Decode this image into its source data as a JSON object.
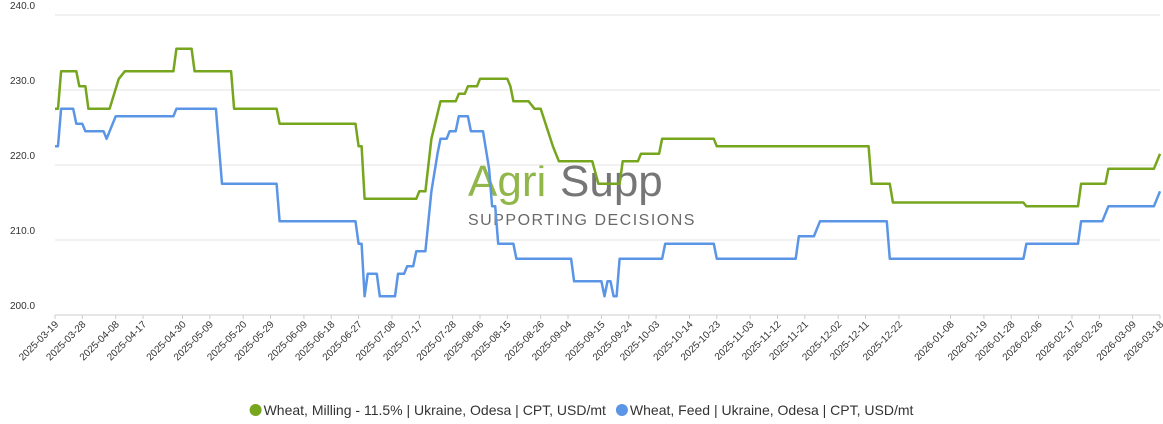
{
  "chart_data": {
    "type": "line",
    "watermark": {
      "brand_a": "Agri",
      "brand_b": "Supp",
      "tagline": "SUPPORTING DECISIONS"
    },
    "ylim": [
      200,
      240
    ],
    "yticks": [
      {
        "value": 200,
        "label": "200.0"
      },
      {
        "value": 210,
        "label": "210.0"
      },
      {
        "value": 220,
        "label": "220.0"
      },
      {
        "value": 230,
        "label": "230.0"
      },
      {
        "value": 240,
        "label": "240.0"
      }
    ],
    "xlim": [
      "2025-03-19",
      "2026-03-18"
    ],
    "xticks": [
      "2025-03-19",
      "2025-03-28",
      "2025-04-08",
      "2025-04-17",
      "2025-04-30",
      "2025-05-09",
      "2025-05-20",
      "2025-05-29",
      "2025-06-09",
      "2025-06-18",
      "2025-06-27",
      "2025-07-08",
      "2025-07-17",
      "2025-07-28",
      "2025-08-06",
      "2025-08-15",
      "2025-08-26",
      "2025-09-04",
      "2025-09-15",
      "2025-09-24",
      "2025-10-03",
      "2025-10-14",
      "2025-10-23",
      "2025-11-03",
      "2025-11-12",
      "2025-11-21",
      "2025-12-02",
      "2025-12-11",
      "2025-12-22",
      "2026-01-08",
      "2026-01-19",
      "2026-01-28",
      "2026-02-06",
      "2026-02-17",
      "2026-02-26",
      "2026-03-09",
      "2026-03-18"
    ],
    "grid": true,
    "legend": "bottom",
    "series": [
      {
        "name": "Wheat, Milling - 11.5% | Ukraine, Odesa | CPT, USD/mt",
        "color": "#76a51e",
        "x": [
          "2025-03-19",
          "2025-03-20",
          "2025-03-21",
          "2025-03-26",
          "2025-03-27",
          "2025-03-29",
          "2025-03-30",
          "2025-04-06",
          "2025-04-09",
          "2025-04-11",
          "2025-04-27",
          "2025-04-28",
          "2025-05-03",
          "2025-05-04",
          "2025-05-16",
          "2025-05-17",
          "2025-05-31",
          "2025-06-01",
          "2025-06-26",
          "2025-06-27",
          "2025-06-28",
          "2025-06-29",
          "2025-07-16",
          "2025-07-17",
          "2025-07-19",
          "2025-07-21",
          "2025-07-24",
          "2025-07-29",
          "2025-07-30",
          "2025-08-01",
          "2025-08-02",
          "2025-08-05",
          "2025-08-06",
          "2025-08-15",
          "2025-08-16",
          "2025-08-17",
          "2025-08-22",
          "2025-08-24",
          "2025-08-26",
          "2025-08-30",
          "2025-09-01",
          "2025-09-12",
          "2025-09-14",
          "2025-09-21",
          "2025-09-22",
          "2025-09-27",
          "2025-09-28",
          "2025-10-04",
          "2025-10-05",
          "2025-10-22",
          "2025-10-23",
          "2025-12-12",
          "2025-12-13",
          "2025-12-19",
          "2025-12-20",
          "2026-02-01",
          "2026-02-02",
          "2026-02-19",
          "2026-02-20",
          "2026-02-28",
          "2026-03-01",
          "2026-03-16",
          "2026-03-18"
        ],
        "values": [
          227.5,
          227.5,
          232.5,
          232.5,
          230.5,
          230.5,
          227.5,
          227.5,
          231.5,
          232.5,
          232.5,
          235.5,
          235.5,
          232.5,
          232.5,
          227.5,
          227.5,
          225.5,
          225.5,
          222.5,
          222.5,
          215.5,
          215.5,
          216.5,
          216.5,
          223.5,
          228.5,
          228.5,
          229.5,
          229.5,
          230.5,
          230.5,
          231.5,
          231.5,
          230.5,
          228.5,
          228.5,
          227.5,
          227.5,
          222.5,
          220.5,
          220.5,
          217.5,
          217.5,
          220.5,
          220.5,
          221.5,
          221.5,
          223.5,
          223.5,
          222.5,
          222.5,
          217.5,
          217.5,
          215,
          215,
          214.5,
          214.5,
          217.5,
          217.5,
          219.5,
          219.5,
          221.5
        ]
      },
      {
        "name": "Wheat, Feed | Ukraine, Odesa | CPT, USD/mt",
        "color": "#5b95e6",
        "x": [
          "2025-03-19",
          "2025-03-20",
          "2025-03-21",
          "2025-03-25",
          "2025-03-26",
          "2025-03-28",
          "2025-03-29",
          "2025-04-04",
          "2025-04-05",
          "2025-04-06",
          "2025-04-08",
          "2025-04-27",
          "2025-04-28",
          "2025-05-11",
          "2025-05-13",
          "2025-05-31",
          "2025-06-01",
          "2025-06-26",
          "2025-06-27",
          "2025-06-28",
          "2025-06-29",
          "2025-06-30",
          "2025-07-03",
          "2025-07-04",
          "2025-07-09",
          "2025-07-10",
          "2025-07-12",
          "2025-07-13",
          "2025-07-15",
          "2025-07-16",
          "2025-07-19",
          "2025-07-21",
          "2025-07-23",
          "2025-07-24",
          "2025-07-26",
          "2025-07-27",
          "2025-07-29",
          "2025-07-30",
          "2025-08-02",
          "2025-08-03",
          "2025-08-07",
          "2025-08-09",
          "2025-08-10",
          "2025-08-11",
          "2025-08-12",
          "2025-08-17",
          "2025-08-18",
          "2025-09-05",
          "2025-09-06",
          "2025-09-15",
          "2025-09-16",
          "2025-09-17",
          "2025-09-18",
          "2025-09-19",
          "2025-09-20",
          "2025-09-21",
          "2025-10-05",
          "2025-10-06",
          "2025-10-22",
          "2025-10-23",
          "2025-11-18",
          "2025-11-19",
          "2025-11-24",
          "2025-11-26",
          "2025-12-18",
          "2025-12-19",
          "2026-02-01",
          "2026-02-02",
          "2026-02-19",
          "2026-02-20",
          "2026-02-27",
          "2026-03-01",
          "2026-03-16",
          "2026-03-18"
        ],
        "values": [
          222.5,
          222.5,
          227.5,
          227.5,
          225.5,
          225.5,
          224.5,
          224.5,
          223.5,
          224.5,
          226.5,
          226.5,
          227.5,
          227.5,
          217.5,
          217.5,
          212.5,
          212.5,
          209.5,
          209.5,
          202.5,
          205.5,
          205.5,
          202.5,
          202.5,
          205.5,
          205.5,
          206.5,
          206.5,
          208.5,
          208.5,
          216.5,
          221.5,
          223.5,
          223.5,
          224.5,
          224.5,
          226.5,
          226.5,
          224.5,
          224.5,
          219.5,
          214.5,
          214.5,
          209.5,
          209.5,
          207.5,
          207.5,
          204.5,
          204.5,
          202.5,
          204.5,
          204.5,
          202.5,
          202.5,
          207.5,
          207.5,
          209.5,
          209.5,
          207.5,
          207.5,
          210.5,
          210.5,
          212.5,
          212.5,
          207.5,
          207.5,
          209.5,
          209.5,
          212.5,
          212.5,
          214.5,
          214.5,
          216.5
        ]
      }
    ]
  }
}
